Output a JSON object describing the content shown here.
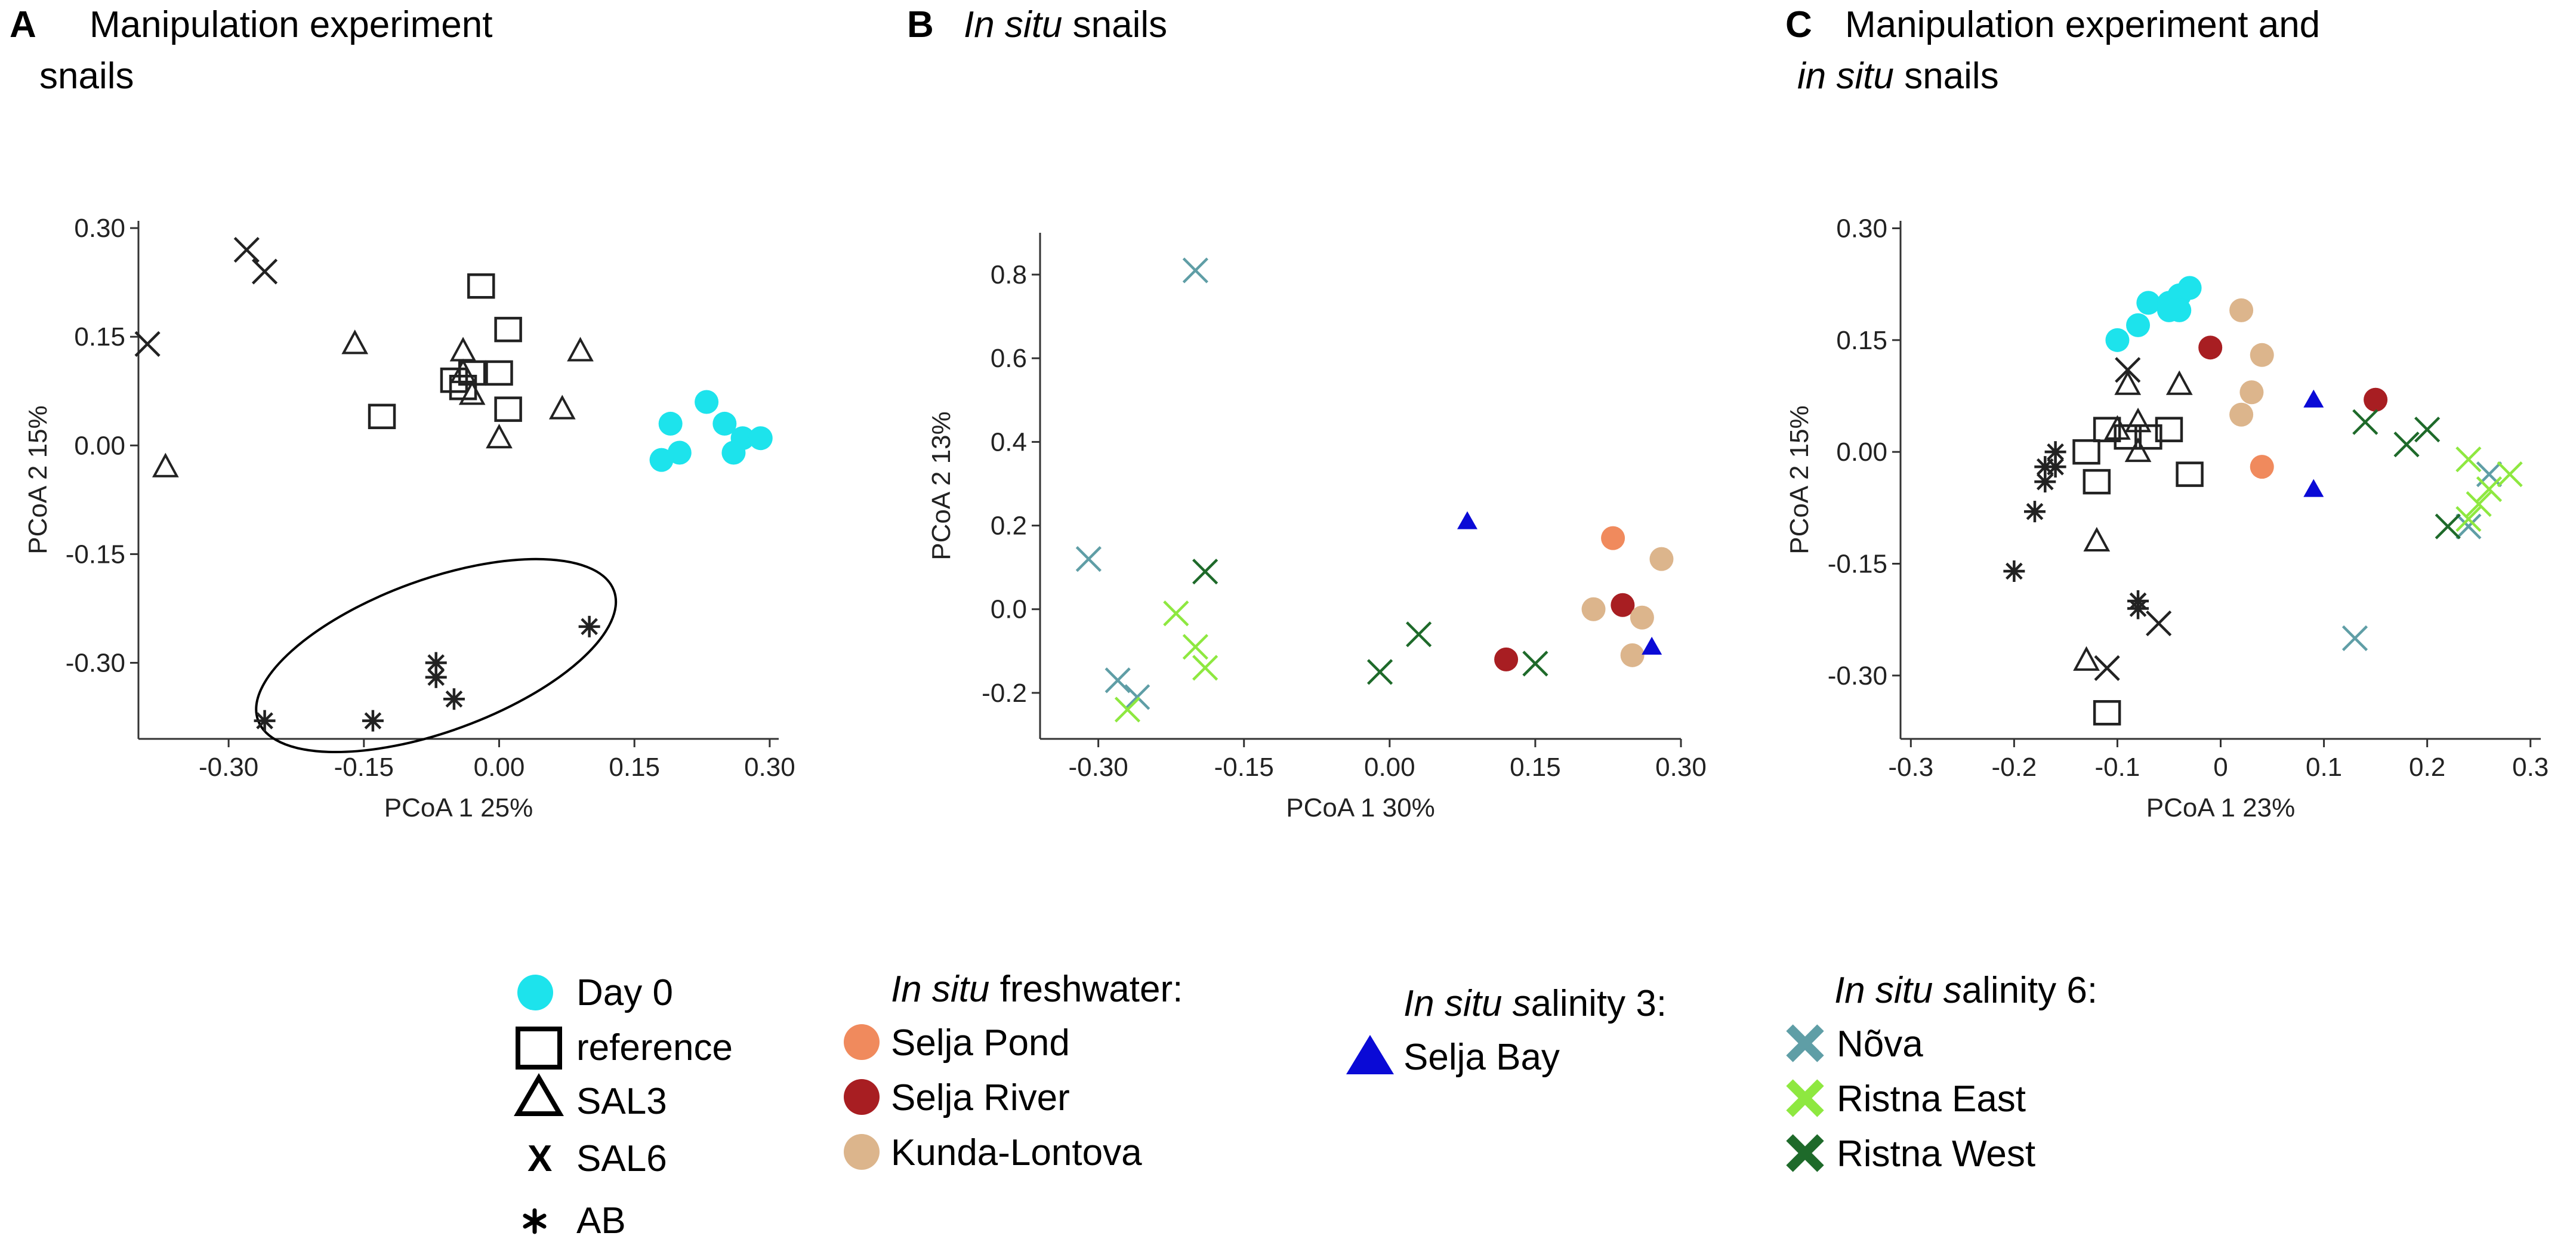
{
  "colors": {
    "day0": "#1de3ec",
    "selja_pond": "#f08a5d",
    "selja_river": "#a81e22",
    "kunda_lontova": "#dcb58c",
    "selja_bay": "#0a0ad6",
    "nova": "#5f9ea6",
    "ristna_east": "#8ee840",
    "ristna_west": "#1e6a2a",
    "black": "#222222"
  },
  "legend": {
    "group1": [
      {
        "label": "Day 0",
        "marker": "circle",
        "color_key": "day0"
      },
      {
        "label": "reference",
        "marker": "square",
        "color_key": "black"
      },
      {
        "label": "SAL3",
        "marker": "triangle",
        "color_key": "black"
      },
      {
        "label": "SAL6",
        "marker": "x-letter",
        "color_key": "black"
      },
      {
        "label": "AB",
        "marker": "asterisk",
        "color_key": "black"
      }
    ],
    "freshwater_title_italic": "In situ",
    "freshwater_title_rest": " freshwater:",
    "freshwater": [
      {
        "label": "Selja Pond",
        "marker": "circle",
        "color_key": "selja_pond"
      },
      {
        "label": "Selja River",
        "marker": "circle",
        "color_key": "selja_river"
      },
      {
        "label": "Kunda-Lontova",
        "marker": "circle",
        "color_key": "kunda_lontova"
      }
    ],
    "sal3_title_italic": "In situ s",
    "sal3_title_rest": "alinity 3:",
    "sal3": [
      {
        "label": "Selja Bay",
        "marker": "triangle-filled",
        "color_key": "selja_bay"
      }
    ],
    "sal6_title_italic": "In situ s",
    "sal6_title_rest": "alinity 6:",
    "sal6": [
      {
        "label": "Nõva",
        "marker": "x-bold",
        "color_key": "nova"
      },
      {
        "label": "Ristna East",
        "marker": "x-bold",
        "color_key": "ristna_east"
      },
      {
        "label": "Ristna West",
        "marker": "x-bold",
        "color_key": "ristna_west"
      }
    ]
  },
  "chart_data": [
    {
      "type": "scatter",
      "panel_letter": "A",
      "title_line1": "Manipulation experiment",
      "title_line2": "snails",
      "xlabel": "PCoA 1 25%",
      "ylabel": "PCoA 2 15%",
      "xlim": [
        -0.4,
        0.31
      ],
      "ylim": [
        -0.405,
        0.31
      ],
      "xticks": [
        -0.3,
        -0.15,
        0.0,
        0.15,
        0.3
      ],
      "xtick_labels": [
        "-0.30",
        "-0.15",
        "0.00",
        "0.15",
        "0.30"
      ],
      "yticks": [
        0.3,
        0.15,
        0.0,
        -0.15,
        -0.3
      ],
      "ytick_labels": [
        "0.30",
        "0.15",
        "0.00",
        "-0.15",
        "-0.30"
      ],
      "ellipse": {
        "cx": -0.07,
        "cy": -0.29,
        "rx": 0.21,
        "ry": 0.105,
        "rotation_deg": -20
      },
      "series": [
        {
          "name": "Day 0",
          "marker": "circle",
          "color_key": "day0",
          "x": [
            0.23,
            0.19,
            0.25,
            0.27,
            0.29,
            0.2,
            0.26,
            0.18
          ],
          "y": [
            0.06,
            0.03,
            0.03,
            0.01,
            0.01,
            -0.01,
            -0.01,
            -0.02
          ]
        },
        {
          "name": "reference",
          "marker": "square",
          "color_key": "black",
          "x": [
            -0.02,
            0.01,
            -0.03,
            -0.04,
            -0.05,
            -0.13,
            0.0,
            0.01
          ],
          "y": [
            0.22,
            0.16,
            0.1,
            0.08,
            0.09,
            0.04,
            0.1,
            0.05
          ]
        },
        {
          "name": "SAL3",
          "marker": "triangle",
          "color_key": "black",
          "x": [
            -0.16,
            -0.04,
            -0.04,
            0.09,
            0.07,
            -0.03,
            0.0,
            -0.37
          ],
          "y": [
            0.14,
            0.13,
            0.1,
            0.13,
            0.05,
            0.07,
            0.01,
            -0.03
          ]
        },
        {
          "name": "SAL6",
          "marker": "x",
          "color_key": "black",
          "x": [
            -0.28,
            -0.26,
            -0.39
          ],
          "y": [
            0.27,
            0.24,
            0.14
          ]
        },
        {
          "name": "AB",
          "marker": "asterisk",
          "color_key": "black",
          "x": [
            0.1,
            -0.07,
            -0.07,
            -0.05,
            -0.14,
            -0.26
          ],
          "y": [
            -0.25,
            -0.3,
            -0.32,
            -0.35,
            -0.38,
            -0.38
          ]
        }
      ]
    },
    {
      "type": "scatter",
      "panel_letter": "B",
      "title_italic": "In situ",
      "title_rest": " snails",
      "xlabel": "PCoA 1 30%",
      "ylabel": "PCoA 2 13%",
      "xlim": [
        -0.36,
        0.3
      ],
      "ylim": [
        -0.31,
        0.9
      ],
      "xticks": [
        -0.3,
        -0.15,
        0.0,
        0.15,
        0.3
      ],
      "xtick_labels": [
        "-0.30",
        "-0.15",
        "0.00",
        "0.15",
        "0.30"
      ],
      "yticks": [
        0.8,
        0.6,
        0.4,
        0.2,
        0.0,
        -0.2
      ],
      "ytick_labels": [
        "0.8",
        "0.6",
        "0.4",
        "0.2",
        "0.0",
        "-0.2"
      ],
      "series": [
        {
          "name": "Selja Pond",
          "marker": "circle",
          "color_key": "selja_pond",
          "x": [
            0.23
          ],
          "y": [
            0.17
          ]
        },
        {
          "name": "Selja River",
          "marker": "circle",
          "color_key": "selja_river",
          "x": [
            0.24,
            0.12
          ],
          "y": [
            0.01,
            -0.12
          ]
        },
        {
          "name": "Kunda-Lontova",
          "marker": "circle",
          "color_key": "kunda_lontova",
          "x": [
            0.28,
            0.21,
            0.26,
            0.25
          ],
          "y": [
            0.12,
            0.0,
            -0.02,
            -0.11
          ]
        },
        {
          "name": "Selja Bay",
          "marker": "triangle-filled",
          "color_key": "selja_bay",
          "x": [
            0.08,
            0.27
          ],
          "y": [
            0.21,
            -0.09
          ]
        },
        {
          "name": "Nõva",
          "marker": "x",
          "color_key": "nova",
          "x": [
            -0.2,
            -0.31,
            -0.28,
            -0.26
          ],
          "y": [
            0.81,
            0.12,
            -0.17,
            -0.21
          ]
        },
        {
          "name": "Ristna East",
          "marker": "x",
          "color_key": "ristna_east",
          "x": [
            -0.22,
            -0.2,
            -0.19,
            -0.27
          ],
          "y": [
            -0.01,
            -0.09,
            -0.14,
            -0.24
          ]
        },
        {
          "name": "Ristna West",
          "marker": "x",
          "color_key": "ristna_west",
          "x": [
            -0.19,
            0.03,
            -0.01,
            0.15
          ],
          "y": [
            0.09,
            -0.06,
            -0.15,
            -0.13
          ]
        }
      ]
    },
    {
      "type": "scatter",
      "panel_letter": "C",
      "title_line1": "Manipulation experiment and",
      "title_line2_italic": "in situ",
      "title_line2_rest": " snails",
      "xlabel": "PCoA 1 23%",
      "ylabel": "PCoA 2 15%",
      "xlim": [
        -0.31,
        0.31
      ],
      "ylim": [
        -0.385,
        0.31
      ],
      "xticks": [
        -0.3,
        -0.2,
        -0.1,
        0.0,
        0.1,
        0.2,
        0.3
      ],
      "xtick_labels": [
        "-0.3",
        "-0.2",
        "-0.1",
        "0",
        "0.1",
        "0.2",
        "0.3"
      ],
      "yticks": [
        0.3,
        0.15,
        0.0,
        -0.15,
        -0.3
      ],
      "ytick_labels": [
        "0.30",
        "0.15",
        "0.00",
        "-0.15",
        "-0.30"
      ],
      "series": [
        {
          "name": "Day 0",
          "marker": "circle",
          "color_key": "day0",
          "x": [
            -0.1,
            -0.08,
            -0.07,
            -0.05,
            -0.04,
            -0.03,
            -0.04,
            -0.05
          ],
          "y": [
            0.15,
            0.17,
            0.2,
            0.2,
            0.21,
            0.22,
            0.19,
            0.19
          ]
        },
        {
          "name": "Selja Pond",
          "marker": "circle",
          "color_key": "selja_pond",
          "x": [
            0.04
          ],
          "y": [
            -0.02
          ]
        },
        {
          "name": "Selja River",
          "marker": "circle",
          "color_key": "selja_river",
          "x": [
            -0.01,
            0.15
          ],
          "y": [
            0.14,
            0.07
          ]
        },
        {
          "name": "Kunda-Lontova",
          "marker": "circle",
          "color_key": "kunda_lontova",
          "x": [
            0.02,
            0.04,
            0.03,
            0.02
          ],
          "y": [
            0.19,
            0.13,
            0.08,
            0.05
          ]
        },
        {
          "name": "Selja Bay",
          "marker": "triangle-filled",
          "color_key": "selja_bay",
          "x": [
            0.09,
            0.09
          ],
          "y": [
            0.07,
            -0.05
          ]
        },
        {
          "name": "reference",
          "marker": "square",
          "color_key": "black",
          "x": [
            -0.11,
            -0.09,
            -0.07,
            -0.05,
            -0.13,
            -0.12,
            -0.03,
            -0.11
          ],
          "y": [
            0.03,
            0.02,
            0.02,
            0.03,
            0.0,
            -0.04,
            -0.03,
            -0.35
          ]
        },
        {
          "name": "SAL3",
          "marker": "triangle",
          "color_key": "black",
          "x": [
            -0.09,
            -0.04,
            -0.08,
            -0.1,
            -0.08,
            -0.12,
            -0.13
          ],
          "y": [
            0.09,
            0.09,
            0.04,
            0.03,
            0.0,
            -0.12,
            -0.28
          ]
        },
        {
          "name": "SAL6",
          "marker": "x",
          "color_key": "black",
          "x": [
            -0.09,
            -0.06,
            -0.11
          ],
          "y": [
            0.11,
            -0.23,
            -0.29
          ]
        },
        {
          "name": "AB",
          "marker": "asterisk",
          "color_key": "black",
          "x": [
            -0.16,
            -0.16,
            -0.17,
            -0.17,
            -0.18,
            -0.2,
            -0.08,
            -0.08
          ],
          "y": [
            0.0,
            -0.02,
            -0.02,
            -0.04,
            -0.08,
            -0.16,
            -0.2,
            -0.21
          ]
        },
        {
          "name": "Nõva",
          "marker": "x",
          "color_key": "nova",
          "x": [
            0.26,
            0.24,
            0.13
          ],
          "y": [
            -0.03,
            -0.1,
            -0.25
          ]
        },
        {
          "name": "Ristna East",
          "marker": "x",
          "color_key": "ristna_east",
          "x": [
            0.24,
            0.28,
            0.26,
            0.25,
            0.24
          ],
          "y": [
            -0.01,
            -0.03,
            -0.05,
            -0.07,
            -0.09
          ]
        },
        {
          "name": "Ristna West",
          "marker": "x",
          "color_key": "ristna_west",
          "x": [
            0.14,
            0.2,
            0.18,
            0.22
          ],
          "y": [
            0.04,
            0.03,
            0.01,
            -0.1
          ]
        }
      ]
    }
  ]
}
